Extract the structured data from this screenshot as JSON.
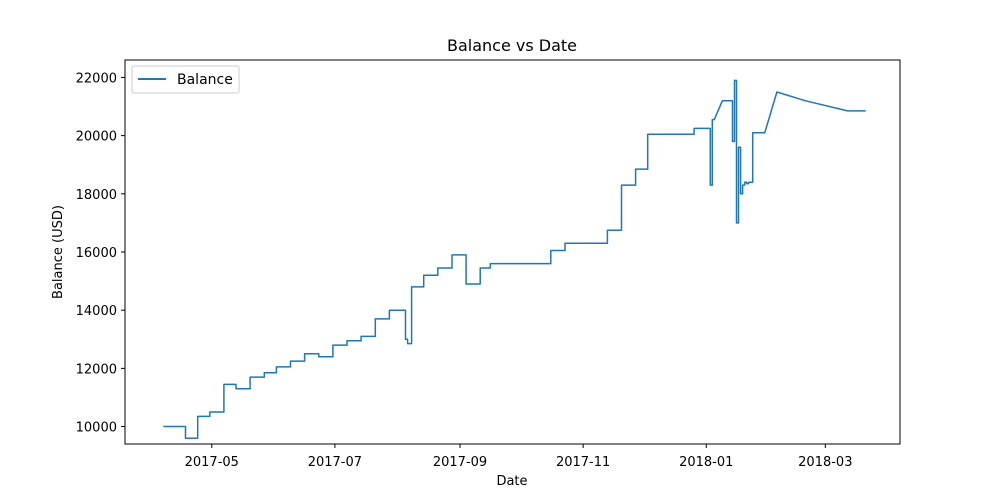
{
  "chart_data": {
    "type": "line",
    "title": "Balance vs Date",
    "xlabel": "Date",
    "ylabel": "Balance (USD)",
    "xlim": [
      "2017-03-19",
      "2018-04-07"
    ],
    "ylim": [
      9400,
      22600
    ],
    "x_ticks": [
      "2017-05",
      "2017-07",
      "2017-09",
      "2017-11",
      "2018-01",
      "2018-03"
    ],
    "y_ticks": [
      10000,
      12000,
      14000,
      16000,
      18000,
      20000,
      22000
    ],
    "grid": false,
    "legend": {
      "position": "top-left"
    },
    "colors": {
      "series": "#1f77b4"
    },
    "series": [
      {
        "name": "Balance",
        "x": [
          "2017-04-07",
          "2017-04-18",
          "2017-04-18",
          "2017-04-24",
          "2017-04-24",
          "2017-04-30",
          "2017-04-30",
          "2017-05-07",
          "2017-05-07",
          "2017-05-13",
          "2017-05-13",
          "2017-05-20",
          "2017-05-20",
          "2017-05-27",
          "2017-05-27",
          "2017-06-02",
          "2017-06-02",
          "2017-06-09",
          "2017-06-09",
          "2017-06-16",
          "2017-06-16",
          "2017-06-23",
          "2017-06-23",
          "2017-06-30",
          "2017-06-30",
          "2017-07-07",
          "2017-07-07",
          "2017-07-14",
          "2017-07-14",
          "2017-07-21",
          "2017-07-21",
          "2017-07-28",
          "2017-07-28",
          "2017-08-03",
          "2017-08-05",
          "2017-08-05",
          "2017-08-06",
          "2017-08-06",
          "2017-08-08",
          "2017-08-08",
          "2017-08-14",
          "2017-08-14",
          "2017-08-21",
          "2017-08-21",
          "2017-08-28",
          "2017-08-28",
          "2017-09-04",
          "2017-09-04",
          "2017-09-11",
          "2017-09-11",
          "2017-09-16",
          "2017-09-16",
          "2017-10-16",
          "2017-10-16",
          "2017-10-23",
          "2017-10-23",
          "2017-11-13",
          "2017-11-13",
          "2017-11-20",
          "2017-11-20",
          "2017-11-27",
          "2017-11-27",
          "2017-12-03",
          "2017-12-03",
          "2017-12-26",
          "2017-12-26",
          "2018-01-02",
          "2018-01-03",
          "2018-01-03",
          "2018-01-04",
          "2018-01-04",
          "2018-01-05",
          "2018-01-05",
          "2018-01-09",
          "2018-01-09",
          "2018-01-14",
          "2018-01-14",
          "2018-01-15",
          "2018-01-15",
          "2018-01-16",
          "2018-01-16",
          "2018-01-17",
          "2018-01-17",
          "2018-01-18",
          "2018-01-18",
          "2018-01-19",
          "2018-01-19",
          "2018-01-20",
          "2018-01-20",
          "2018-01-21",
          "2018-01-21",
          "2018-01-22",
          "2018-01-22",
          "2018-01-24",
          "2018-01-24",
          "2018-01-30",
          "2018-01-30",
          "2018-02-05",
          "2018-02-05",
          "2018-02-19",
          "2018-02-19",
          "2018-03-12",
          "2018-03-12",
          "2018-03-21"
        ],
        "values": [
          10000,
          10000,
          9600,
          9600,
          10350,
          10350,
          10500,
          10500,
          11450,
          11450,
          11300,
          11300,
          11700,
          11700,
          11850,
          11850,
          12050,
          12050,
          12250,
          12250,
          12500,
          12500,
          12400,
          12400,
          12800,
          12800,
          12950,
          12950,
          13100,
          13100,
          13700,
          13700,
          14000,
          14000,
          14000,
          13000,
          13000,
          12850,
          12850,
          14800,
          14800,
          15200,
          15200,
          15450,
          15450,
          15900,
          15900,
          14900,
          14900,
          15450,
          15450,
          15600,
          15600,
          16050,
          16050,
          16300,
          16300,
          16750,
          16750,
          18300,
          18300,
          18850,
          18850,
          20050,
          20050,
          20250,
          20250,
          20250,
          18300,
          18300,
          20550,
          20550,
          20550,
          21200,
          21200,
          21200,
          19800,
          19800,
          21900,
          21900,
          17000,
          17000,
          19600,
          19600,
          18000,
          18000,
          18300,
          18300,
          18400,
          18400,
          18350,
          18350,
          18400,
          18400,
          20100,
          20100,
          20100,
          21500,
          21500,
          21200,
          21200,
          20850,
          20850,
          20850
        ]
      }
    ]
  }
}
